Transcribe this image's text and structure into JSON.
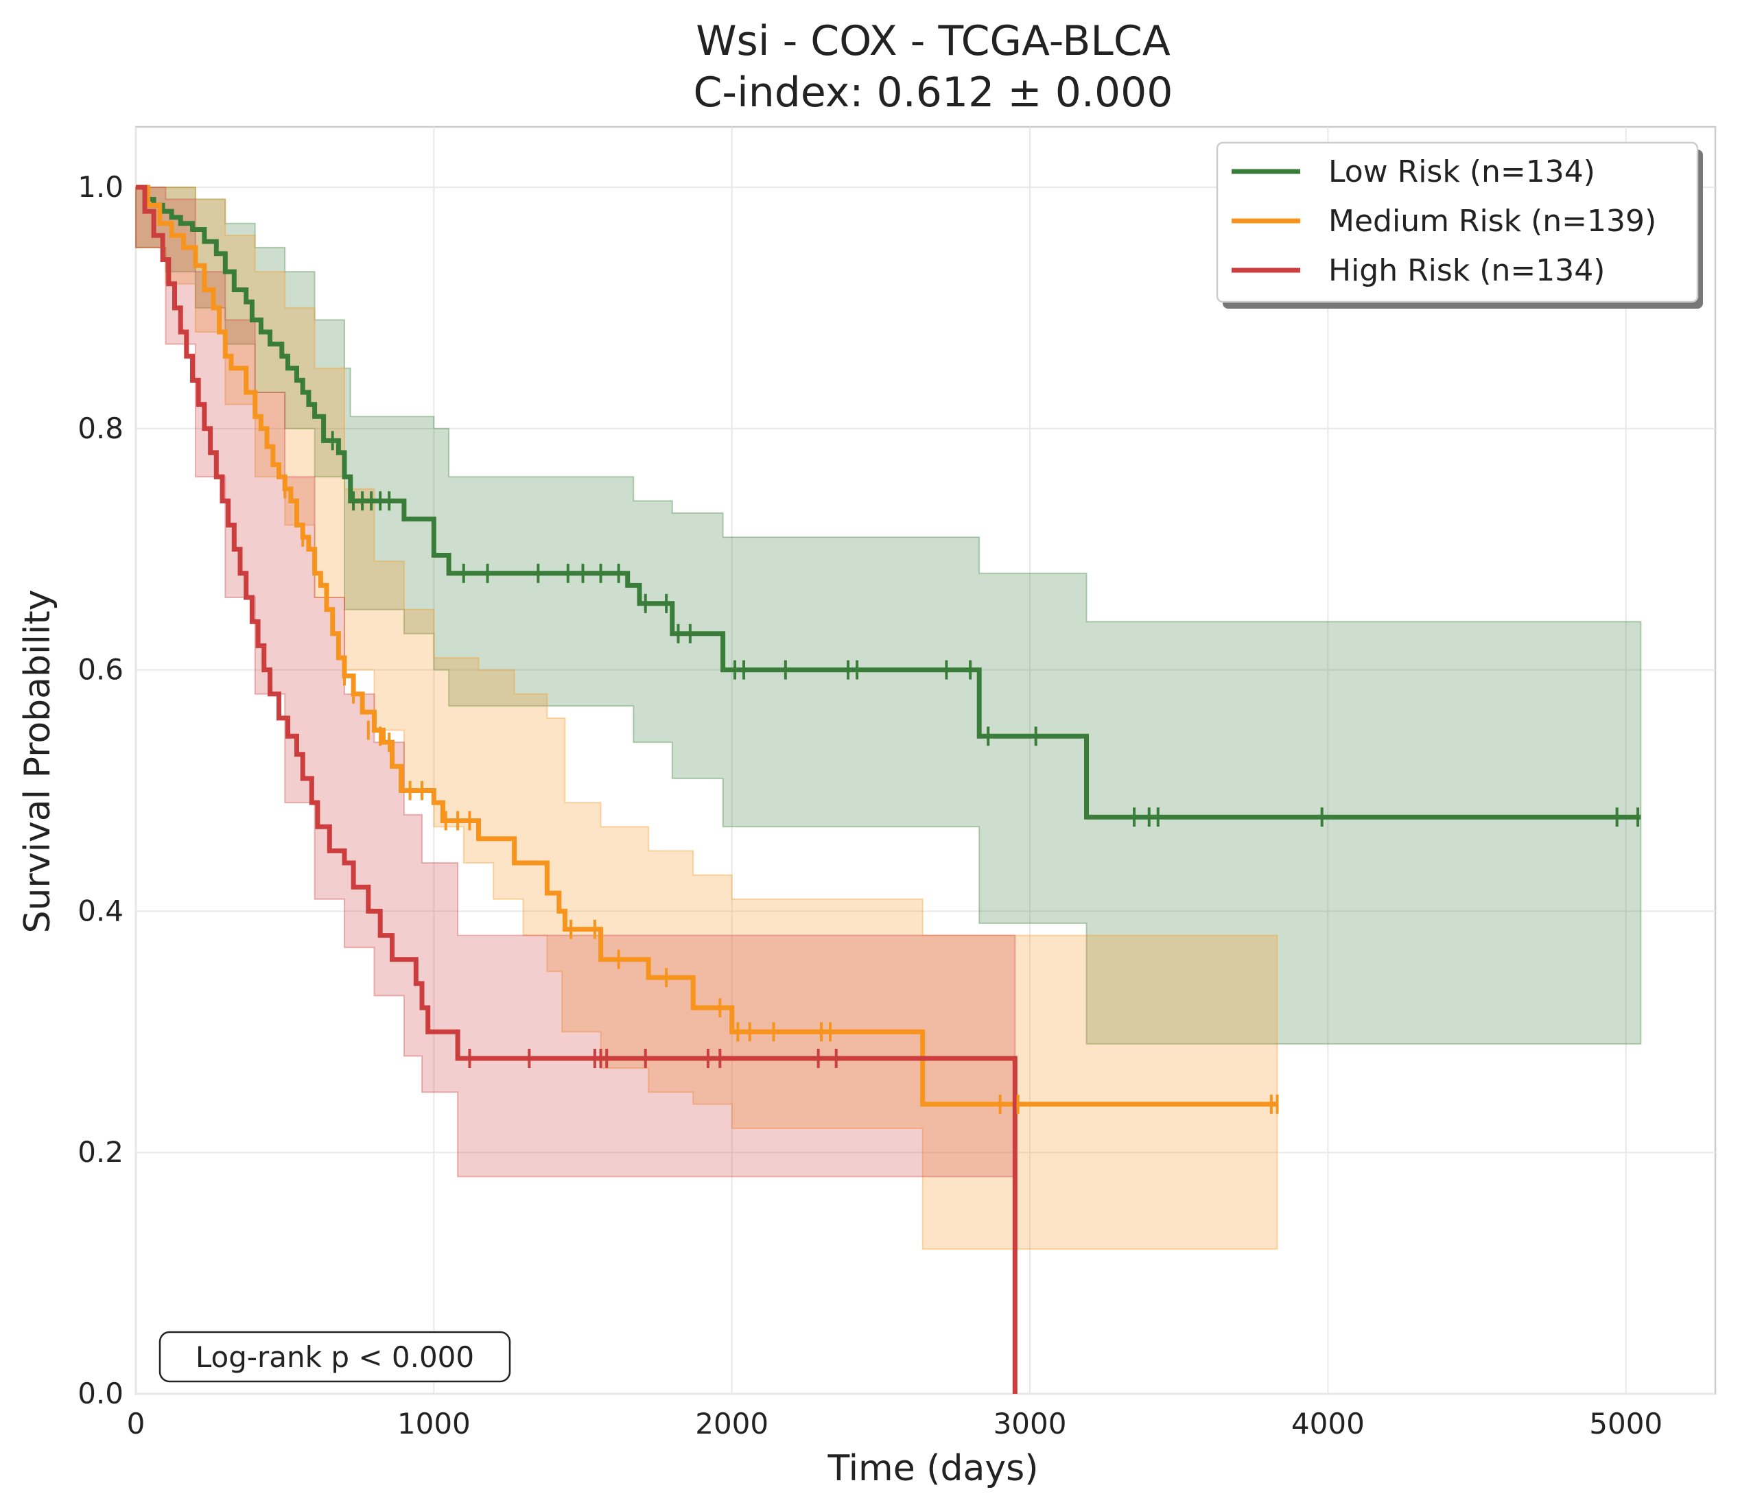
{
  "chart_data": {
    "type": "line",
    "title": "Wsi - COX - TCGA-BLCA",
    "subtitle": "C-index: 0.612 ± 0.000",
    "xlabel": "Time (days)",
    "ylabel": "Survival Probability",
    "xlim": [
      0,
      5300
    ],
    "ylim": [
      0,
      1.05
    ],
    "xticks": [
      0,
      1000,
      2000,
      3000,
      4000,
      5000
    ],
    "xtick_labels": [
      "0",
      "1000",
      "2000",
      "3000",
      "4000",
      "5000"
    ],
    "yticks": [
      0.0,
      0.2,
      0.4,
      0.6,
      0.8,
      1.0
    ],
    "ytick_labels": [
      "0.0",
      "0.2",
      "0.4",
      "0.6",
      "0.8",
      "1.0"
    ],
    "grid": true,
    "legend_position": "top-right",
    "annotation": "Log-rank p < 0.000",
    "series": [
      {
        "name": "Low Risk (n=134)",
        "color": "#3a7d3a",
        "steps": [
          [
            0,
            1.0
          ],
          [
            30,
            0.99
          ],
          [
            60,
            0.985
          ],
          [
            90,
            0.98
          ],
          [
            120,
            0.975
          ],
          [
            150,
            0.97
          ],
          [
            190,
            0.965
          ],
          [
            230,
            0.955
          ],
          [
            270,
            0.945
          ],
          [
            300,
            0.93
          ],
          [
            330,
            0.915
          ],
          [
            370,
            0.905
          ],
          [
            390,
            0.89
          ],
          [
            420,
            0.88
          ],
          [
            450,
            0.87
          ],
          [
            490,
            0.86
          ],
          [
            510,
            0.85
          ],
          [
            540,
            0.84
          ],
          [
            560,
            0.83
          ],
          [
            580,
            0.82
          ],
          [
            600,
            0.81
          ],
          [
            630,
            0.79
          ],
          [
            680,
            0.78
          ],
          [
            700,
            0.76
          ],
          [
            720,
            0.74
          ],
          [
            900,
            0.725
          ],
          [
            1000,
            0.695
          ],
          [
            1050,
            0.68
          ],
          [
            1650,
            0.67
          ],
          [
            1690,
            0.655
          ],
          [
            1800,
            0.63
          ],
          [
            1970,
            0.6
          ],
          [
            2830,
            0.545
          ],
          [
            3190,
            0.478
          ],
          [
            5050,
            0.478
          ]
        ],
        "ci_lower": [
          [
            0,
            0.95
          ],
          [
            100,
            0.93
          ],
          [
            200,
            0.9
          ],
          [
            300,
            0.87
          ],
          [
            400,
            0.83
          ],
          [
            500,
            0.8
          ],
          [
            600,
            0.76
          ],
          [
            700,
            0.65
          ],
          [
            900,
            0.63
          ],
          [
            1000,
            0.6
          ],
          [
            1050,
            0.57
          ],
          [
            1670,
            0.54
          ],
          [
            1800,
            0.51
          ],
          [
            1970,
            0.47
          ],
          [
            2830,
            0.39
          ],
          [
            3190,
            0.29
          ],
          [
            5050,
            0.29
          ]
        ],
        "ci_upper": [
          [
            0,
            1.0
          ],
          [
            100,
            1.0
          ],
          [
            200,
            0.99
          ],
          [
            300,
            0.97
          ],
          [
            400,
            0.95
          ],
          [
            500,
            0.93
          ],
          [
            600,
            0.89
          ],
          [
            700,
            0.85
          ],
          [
            720,
            0.81
          ],
          [
            1000,
            0.8
          ],
          [
            1050,
            0.76
          ],
          [
            1670,
            0.74
          ],
          [
            1800,
            0.73
          ],
          [
            1970,
            0.71
          ],
          [
            2830,
            0.68
          ],
          [
            3190,
            0.64
          ],
          [
            5050,
            0.64
          ]
        ],
        "censors": [
          [
            660,
            0.79
          ],
          [
            730,
            0.74
          ],
          [
            760,
            0.74
          ],
          [
            790,
            0.74
          ],
          [
            820,
            0.74
          ],
          [
            850,
            0.74
          ],
          [
            1100,
            0.68
          ],
          [
            1180,
            0.68
          ],
          [
            1350,
            0.68
          ],
          [
            1450,
            0.68
          ],
          [
            1500,
            0.68
          ],
          [
            1560,
            0.68
          ],
          [
            1620,
            0.68
          ],
          [
            1710,
            0.655
          ],
          [
            1780,
            0.655
          ],
          [
            1820,
            0.63
          ],
          [
            1860,
            0.63
          ],
          [
            2010,
            0.6
          ],
          [
            2040,
            0.6
          ],
          [
            2180,
            0.6
          ],
          [
            2390,
            0.6
          ],
          [
            2420,
            0.6
          ],
          [
            2720,
            0.6
          ],
          [
            2800,
            0.6
          ],
          [
            2860,
            0.545
          ],
          [
            3020,
            0.545
          ],
          [
            3350,
            0.478
          ],
          [
            3400,
            0.478
          ],
          [
            3430,
            0.478
          ],
          [
            3980,
            0.478
          ],
          [
            4970,
            0.478
          ],
          [
            5040,
            0.478
          ]
        ]
      },
      {
        "name": "Medium Risk (n=139)",
        "color": "#f7941d",
        "steps": [
          [
            0,
            1.0
          ],
          [
            40,
            0.985
          ],
          [
            80,
            0.97
          ],
          [
            120,
            0.96
          ],
          [
            160,
            0.95
          ],
          [
            200,
            0.935
          ],
          [
            230,
            0.915
          ],
          [
            260,
            0.9
          ],
          [
            280,
            0.88
          ],
          [
            300,
            0.86
          ],
          [
            320,
            0.85
          ],
          [
            370,
            0.83
          ],
          [
            400,
            0.81
          ],
          [
            420,
            0.8
          ],
          [
            440,
            0.785
          ],
          [
            460,
            0.77
          ],
          [
            480,
            0.76
          ],
          [
            500,
            0.75
          ],
          [
            520,
            0.74
          ],
          [
            540,
            0.72
          ],
          [
            560,
            0.71
          ],
          [
            580,
            0.7
          ],
          [
            600,
            0.68
          ],
          [
            620,
            0.67
          ],
          [
            640,
            0.65
          ],
          [
            660,
            0.63
          ],
          [
            680,
            0.61
          ],
          [
            700,
            0.595
          ],
          [
            730,
            0.58
          ],
          [
            760,
            0.565
          ],
          [
            800,
            0.55
          ],
          [
            830,
            0.54
          ],
          [
            860,
            0.52
          ],
          [
            890,
            0.5
          ],
          [
            1000,
            0.49
          ],
          [
            1030,
            0.475
          ],
          [
            1150,
            0.46
          ],
          [
            1270,
            0.44
          ],
          [
            1380,
            0.415
          ],
          [
            1420,
            0.4
          ],
          [
            1440,
            0.385
          ],
          [
            1560,
            0.36
          ],
          [
            1720,
            0.345
          ],
          [
            1870,
            0.32
          ],
          [
            2000,
            0.3
          ],
          [
            2640,
            0.24
          ],
          [
            3830,
            0.24
          ]
        ],
        "ci_lower": [
          [
            0,
            0.95
          ],
          [
            100,
            0.92
          ],
          [
            200,
            0.88
          ],
          [
            300,
            0.82
          ],
          [
            400,
            0.76
          ],
          [
            500,
            0.72
          ],
          [
            600,
            0.66
          ],
          [
            700,
            0.6
          ],
          [
            800,
            0.55
          ],
          [
            900,
            0.5
          ],
          [
            1000,
            0.47
          ],
          [
            1100,
            0.44
          ],
          [
            1200,
            0.41
          ],
          [
            1300,
            0.38
          ],
          [
            1380,
            0.35
          ],
          [
            1430,
            0.3
          ],
          [
            1560,
            0.27
          ],
          [
            1720,
            0.25
          ],
          [
            1870,
            0.24
          ],
          [
            2000,
            0.22
          ],
          [
            2640,
            0.12
          ],
          [
            3830,
            0.12
          ]
        ],
        "ci_upper": [
          [
            0,
            1.0
          ],
          [
            200,
            0.99
          ],
          [
            300,
            0.96
          ],
          [
            400,
            0.93
          ],
          [
            500,
            0.9
          ],
          [
            600,
            0.85
          ],
          [
            700,
            0.75
          ],
          [
            800,
            0.69
          ],
          [
            900,
            0.65
          ],
          [
            1000,
            0.61
          ],
          [
            1150,
            0.6
          ],
          [
            1270,
            0.58
          ],
          [
            1380,
            0.56
          ],
          [
            1440,
            0.49
          ],
          [
            1560,
            0.47
          ],
          [
            1720,
            0.45
          ],
          [
            1870,
            0.43
          ],
          [
            2000,
            0.41
          ],
          [
            2640,
            0.38
          ],
          [
            3830,
            0.38
          ]
        ],
        "censors": [
          [
            500,
            0.75
          ],
          [
            560,
            0.71
          ],
          [
            700,
            0.595
          ],
          [
            730,
            0.58
          ],
          [
            780,
            0.55
          ],
          [
            820,
            0.545
          ],
          [
            850,
            0.54
          ],
          [
            920,
            0.5
          ],
          [
            960,
            0.5
          ],
          [
            1040,
            0.475
          ],
          [
            1080,
            0.475
          ],
          [
            1120,
            0.475
          ],
          [
            1460,
            0.385
          ],
          [
            1540,
            0.385
          ],
          [
            1620,
            0.36
          ],
          [
            1780,
            0.345
          ],
          [
            1960,
            0.32
          ],
          [
            2020,
            0.3
          ],
          [
            2060,
            0.3
          ],
          [
            2140,
            0.3
          ],
          [
            2300,
            0.3
          ],
          [
            2330,
            0.3
          ],
          [
            2900,
            0.24
          ],
          [
            2960,
            0.24
          ],
          [
            3810,
            0.24
          ],
          [
            3830,
            0.24
          ]
        ]
      },
      {
        "name": "High Risk (n=134)",
        "color": "#cc3d3d",
        "steps": [
          [
            0,
            1.0
          ],
          [
            30,
            0.98
          ],
          [
            60,
            0.96
          ],
          [
            90,
            0.94
          ],
          [
            110,
            0.92
          ],
          [
            130,
            0.9
          ],
          [
            150,
            0.88
          ],
          [
            170,
            0.86
          ],
          [
            190,
            0.84
          ],
          [
            210,
            0.82
          ],
          [
            230,
            0.8
          ],
          [
            250,
            0.78
          ],
          [
            270,
            0.76
          ],
          [
            290,
            0.74
          ],
          [
            310,
            0.72
          ],
          [
            330,
            0.7
          ],
          [
            350,
            0.68
          ],
          [
            370,
            0.66
          ],
          [
            390,
            0.64
          ],
          [
            410,
            0.62
          ],
          [
            430,
            0.6
          ],
          [
            450,
            0.58
          ],
          [
            480,
            0.56
          ],
          [
            510,
            0.545
          ],
          [
            540,
            0.53
          ],
          [
            560,
            0.51
          ],
          [
            590,
            0.49
          ],
          [
            610,
            0.47
          ],
          [
            650,
            0.45
          ],
          [
            700,
            0.44
          ],
          [
            730,
            0.42
          ],
          [
            780,
            0.4
          ],
          [
            820,
            0.38
          ],
          [
            860,
            0.36
          ],
          [
            940,
            0.34
          ],
          [
            960,
            0.32
          ],
          [
            980,
            0.3
          ],
          [
            1080,
            0.278
          ],
          [
            2950,
            0.278
          ],
          [
            2950,
            0.0
          ]
        ],
        "ci_lower": [
          [
            0,
            0.95
          ],
          [
            100,
            0.87
          ],
          [
            200,
            0.76
          ],
          [
            300,
            0.66
          ],
          [
            400,
            0.58
          ],
          [
            500,
            0.49
          ],
          [
            600,
            0.41
          ],
          [
            700,
            0.37
          ],
          [
            800,
            0.33
          ],
          [
            900,
            0.28
          ],
          [
            960,
            0.25
          ],
          [
            1080,
            0.18
          ],
          [
            2950,
            0.18
          ]
        ],
        "ci_upper": [
          [
            0,
            1.0
          ],
          [
            100,
            0.99
          ],
          [
            200,
            0.93
          ],
          [
            300,
            0.89
          ],
          [
            400,
            0.83
          ],
          [
            500,
            0.76
          ],
          [
            600,
            0.66
          ],
          [
            700,
            0.58
          ],
          [
            800,
            0.54
          ],
          [
            900,
            0.48
          ],
          [
            960,
            0.44
          ],
          [
            1080,
            0.38
          ],
          [
            2950,
            0.38
          ]
        ],
        "censors": [
          [
            1120,
            0.278
          ],
          [
            1320,
            0.278
          ],
          [
            1540,
            0.278
          ],
          [
            1560,
            0.278
          ],
          [
            1580,
            0.278
          ],
          [
            1710,
            0.278
          ],
          [
            1920,
            0.278
          ],
          [
            1960,
            0.278
          ],
          [
            2290,
            0.278
          ],
          [
            2350,
            0.278
          ]
        ]
      }
    ]
  }
}
